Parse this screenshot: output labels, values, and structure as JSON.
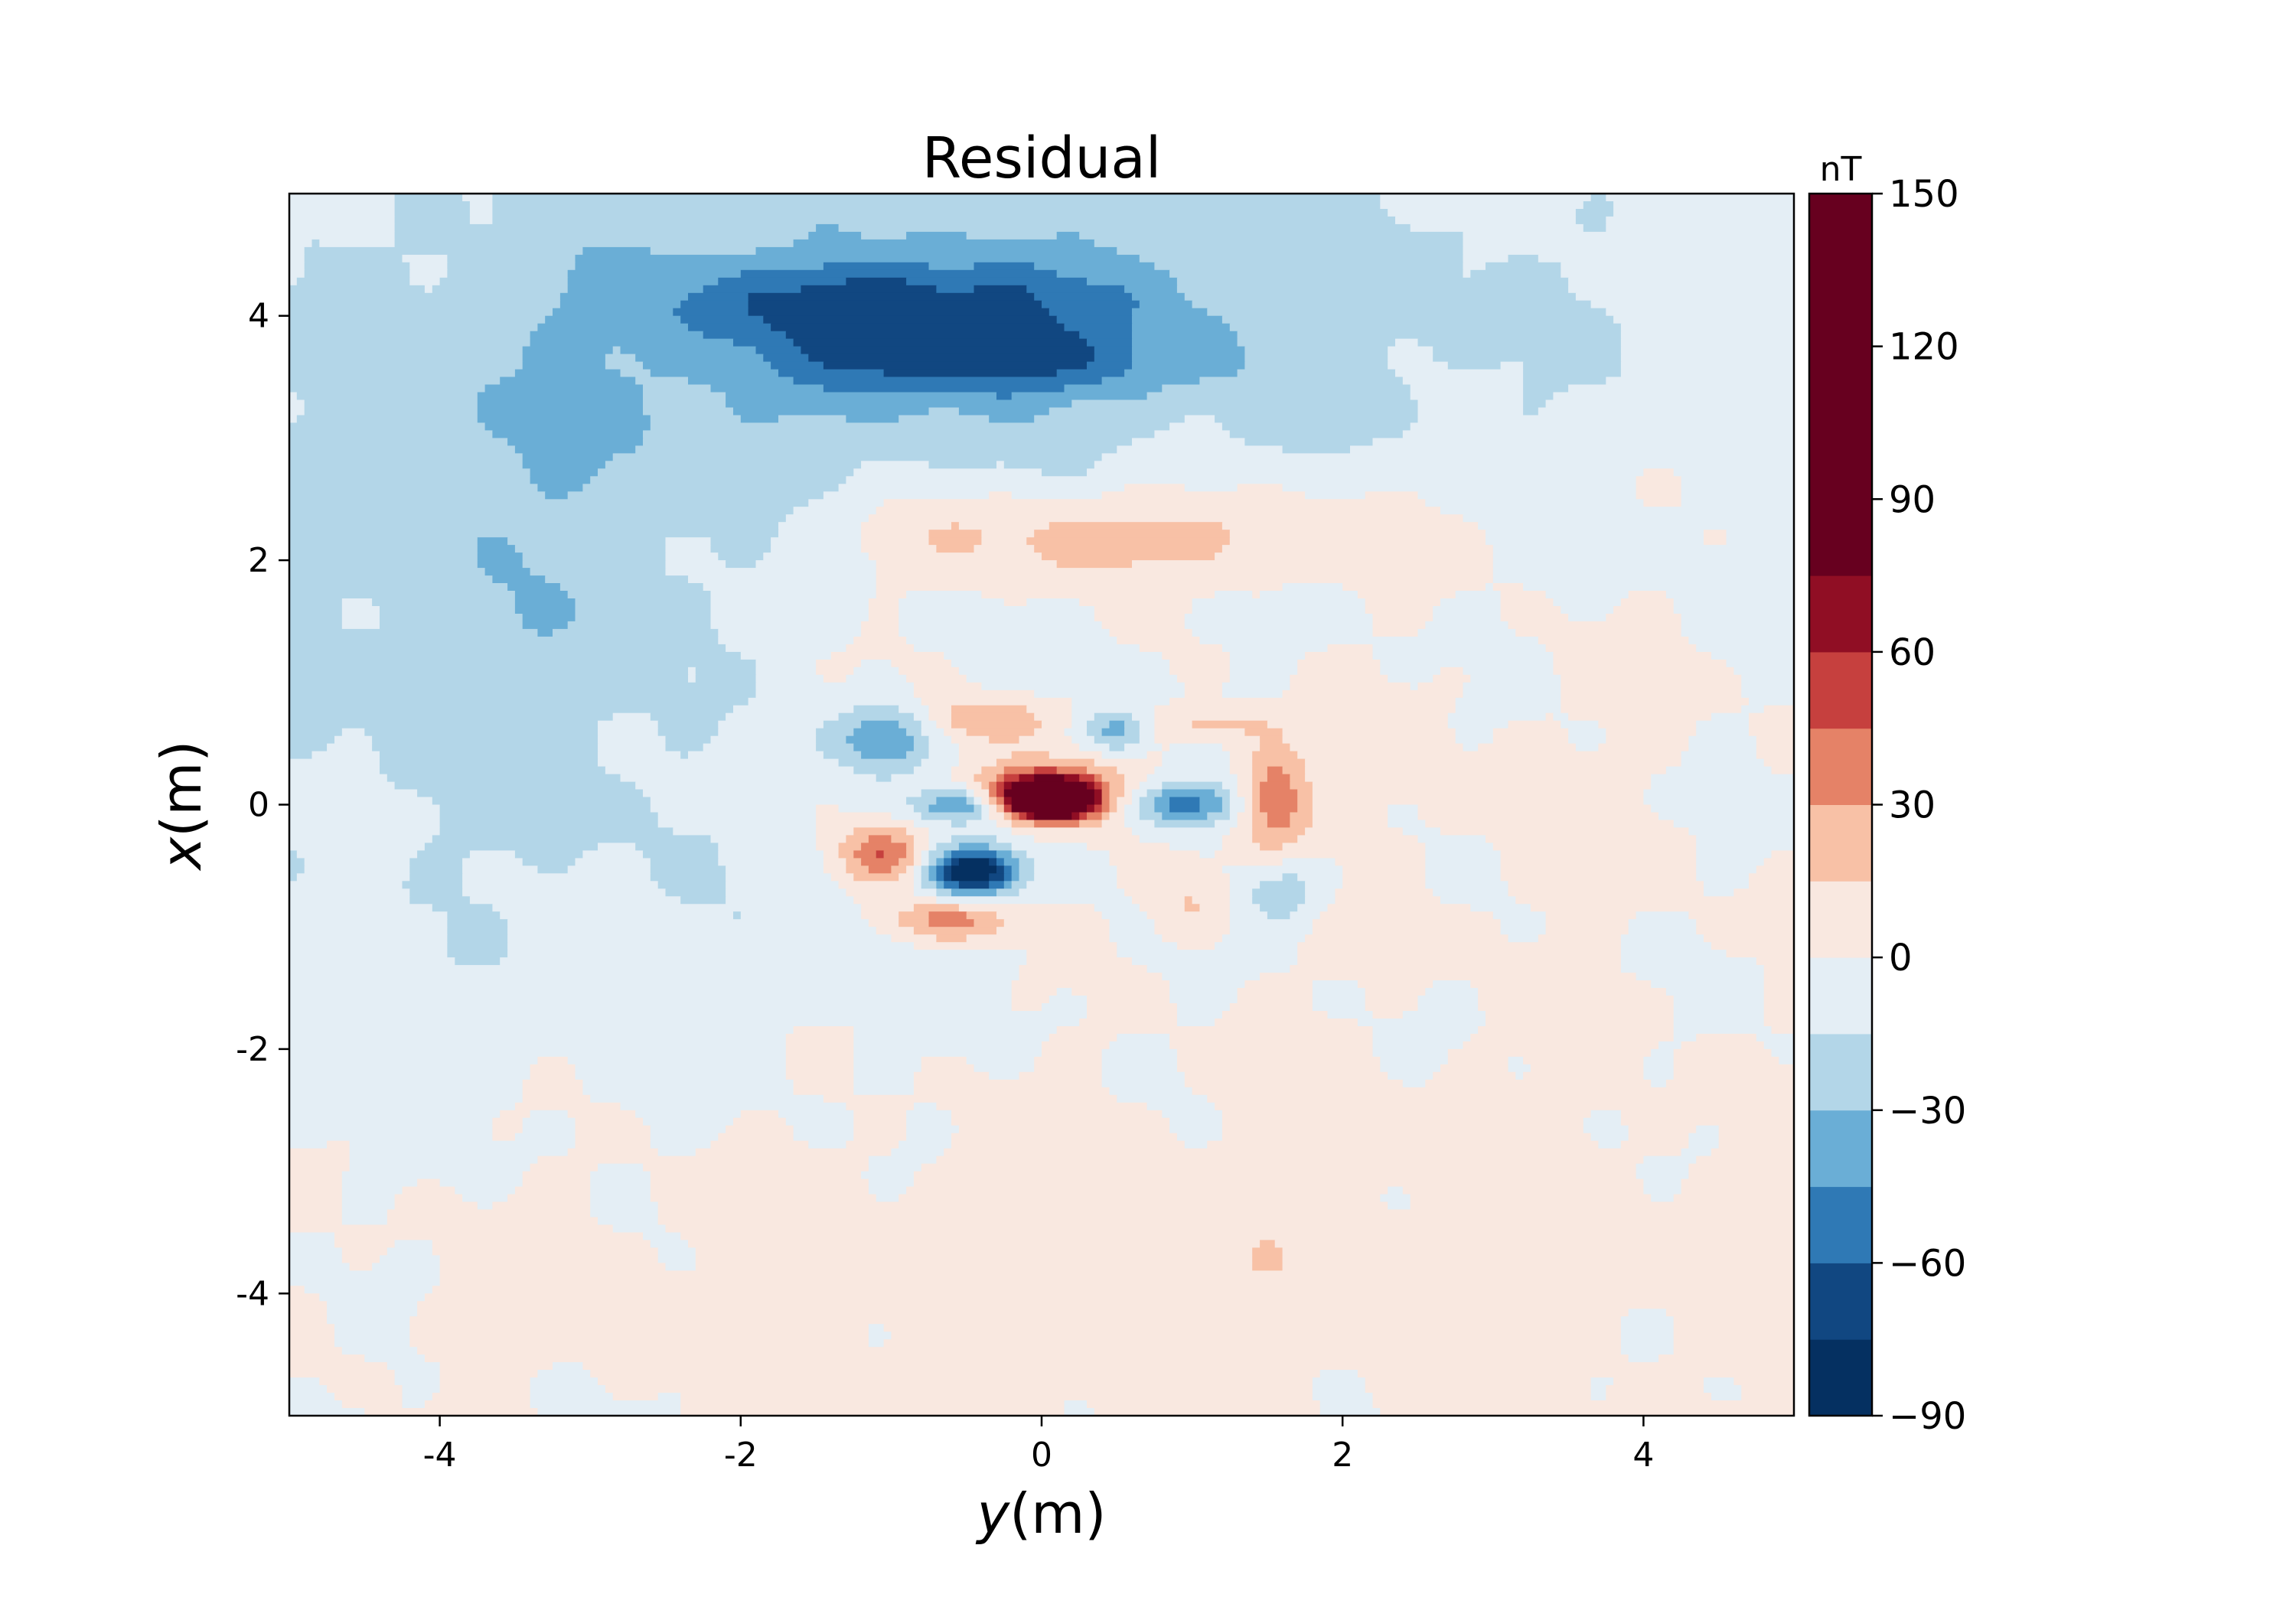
{
  "chart_data": {
    "type": "heatmap",
    "subtype": "filled-contour",
    "title": "Residual",
    "xlabel_var": "y",
    "xlabel_unit": "(m)",
    "ylabel_var": "x",
    "ylabel_unit": "(m)",
    "xlim": [
      -5,
      5
    ],
    "ylim": [
      -5,
      5
    ],
    "x_ticks": [
      -4,
      -2,
      0,
      2,
      4
    ],
    "x_tick_labels": [
      "-4",
      "-2",
      "0",
      "2",
      "4"
    ],
    "y_ticks": [
      4,
      2,
      0,
      -2,
      -4
    ],
    "y_tick_labels": [
      "4",
      "2",
      "0",
      "-2",
      "-4"
    ],
    "grid": false,
    "colormap": "RdBu_r",
    "colorbar": {
      "unit": "nT",
      "range": [
        -90,
        150
      ],
      "ticks": [
        150,
        120,
        90,
        60,
        30,
        0,
        -30,
        -60,
        -90
      ],
      "tick_labels": [
        "150",
        "120",
        "90",
        "60",
        "30",
        "0",
        "−30",
        "−60",
        "−90"
      ],
      "levels": [
        -90,
        -75,
        -60,
        -45,
        -30,
        -15,
        0,
        15,
        30,
        45,
        60,
        75,
        150
      ],
      "colors": [
        "#053061",
        "#114781",
        "#2f79b5",
        "#6aaed6",
        "#b3d6e8",
        "#e4eef5",
        "#f9e8e0",
        "#f8c1a6",
        "#e58267",
        "#c6403e",
        "#900e24",
        "#67001f"
      ]
    },
    "background_value": -5,
    "features": [
      {
        "y": 0.0,
        "x": 4.0,
        "sy": 2.6,
        "sx": 0.9,
        "value": -25
      },
      {
        "y": -3.2,
        "x": 1.8,
        "sy": 1.6,
        "sx": 2.0,
        "value": -22
      },
      {
        "y": -1.0,
        "x": 4.1,
        "sy": 1.0,
        "sx": 0.25,
        "value": -40
      },
      {
        "y": -0.4,
        "x": 3.6,
        "sy": 0.8,
        "sx": 0.2,
        "value": -38
      },
      {
        "y": 2.8,
        "x": -3.6,
        "sy": 3.5,
        "sx": 1.5,
        "value": 10
      },
      {
        "y": -2.0,
        "x": -4.0,
        "sy": 3.0,
        "sx": 1.0,
        "value": 8
      },
      {
        "y": 3.0,
        "x": 0.2,
        "sy": 2.0,
        "sx": 1.2,
        "value": 8
      },
      {
        "y": 0.4,
        "x": 2.2,
        "sy": 1.4,
        "sx": 0.3,
        "value": 28
      },
      {
        "y": -1.4,
        "x": 1.0,
        "sy": 0.9,
        "sx": 0.9,
        "value": 12
      },
      {
        "y": 0.05,
        "x": 0.05,
        "sy": 0.18,
        "sx": 0.1,
        "value": 155
      },
      {
        "y": 0.0,
        "x": 0.1,
        "sy": 0.35,
        "sx": 0.18,
        "value": 60
      },
      {
        "y": -0.45,
        "x": -0.55,
        "sy": 0.2,
        "sx": 0.14,
        "value": -90
      },
      {
        "y": -1.05,
        "x": 0.55,
        "sy": 0.22,
        "sx": 0.2,
        "value": -48
      },
      {
        "y": -0.55,
        "x": 0.0,
        "sy": 0.2,
        "sx": 0.1,
        "value": -50
      },
      {
        "y": 0.95,
        "x": 0.0,
        "sy": 0.24,
        "sx": 0.13,
        "value": -55
      },
      {
        "y": 0.5,
        "x": 0.6,
        "sy": 0.15,
        "sx": 0.12,
        "value": -40
      },
      {
        "y": -1.05,
        "x": -0.4,
        "sy": 0.2,
        "sx": 0.17,
        "value": 45
      },
      {
        "y": -0.35,
        "x": 0.7,
        "sy": 0.3,
        "sx": 0.13,
        "value": 30
      },
      {
        "y": 1.55,
        "x": 0.05,
        "sy": 0.16,
        "sx": 0.3,
        "value": 45
      },
      {
        "y": -0.6,
        "x": -0.95,
        "sy": 0.3,
        "sx": 0.12,
        "value": 40
      },
      {
        "y": 1.6,
        "x": -0.7,
        "sy": 0.2,
        "sx": 0.2,
        "value": -30
      },
      {
        "y": 1.1,
        "x": 0.65,
        "sy": 0.3,
        "sx": 0.1,
        "value": 22
      },
      {
        "y": 1.0,
        "x": -0.8,
        "sy": 0.2,
        "sx": 0.2,
        "value": 20
      }
    ]
  }
}
